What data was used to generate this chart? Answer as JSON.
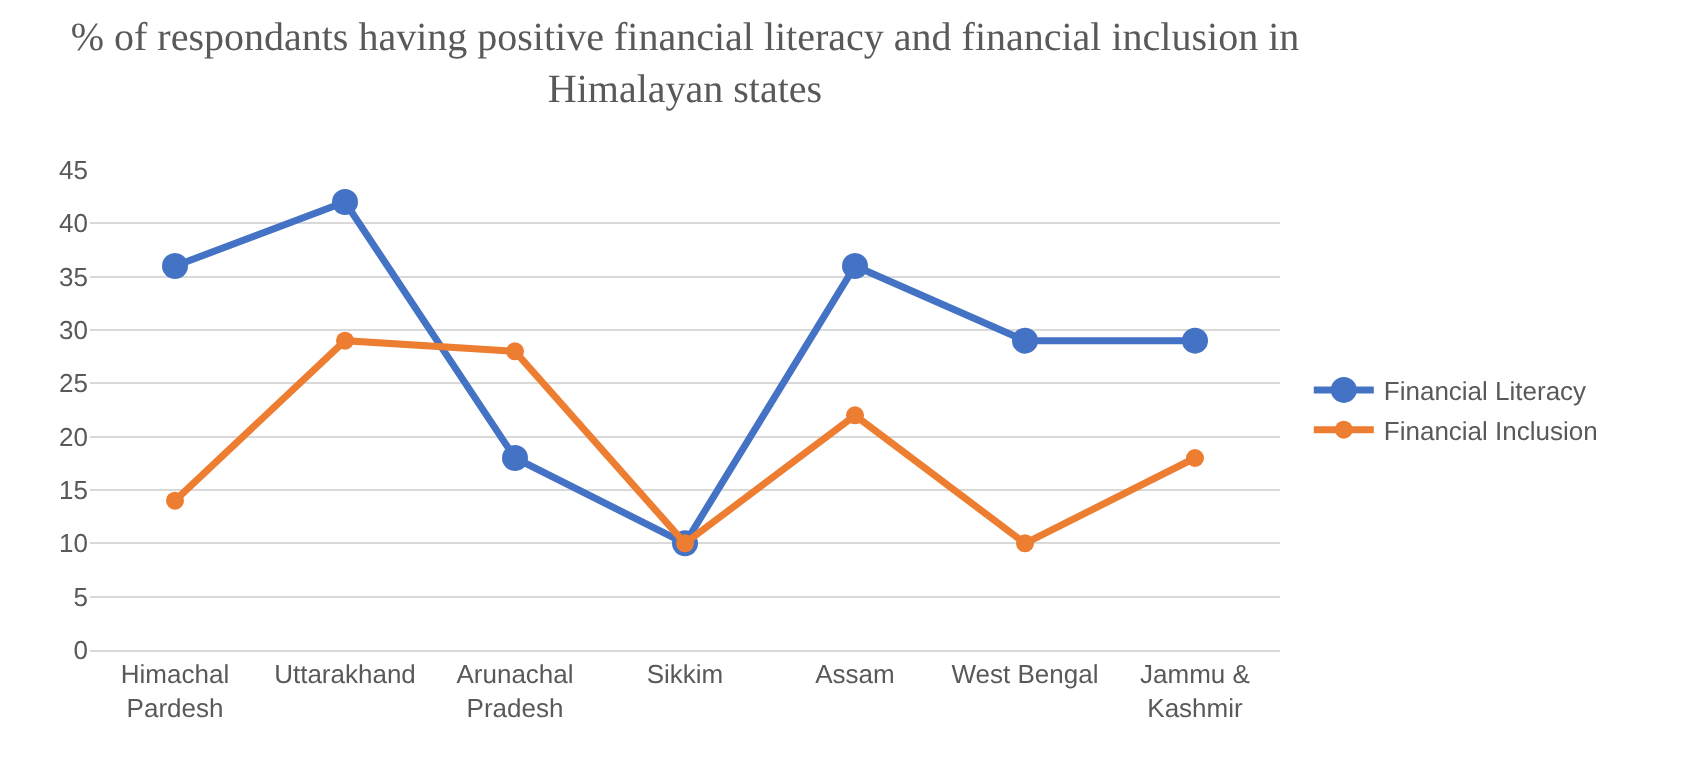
{
  "chart_data": {
    "type": "line",
    "title": "% of respondants having positive financial literacy and financial inclusion in\nHimalayan states",
    "categories": [
      "Himachal\nPardesh",
      "Uttarakhand",
      "Arunachal\nPradesh",
      "Sikkim",
      "Assam",
      "West Bengal",
      "Jammu &\nKashmir"
    ],
    "series": [
      {
        "name": "Financial Literacy",
        "color": "#4472c4",
        "values": [
          36,
          42,
          18,
          10,
          36,
          29,
          29
        ]
      },
      {
        "name": "Financial Inclusion",
        "color": "#ed7d31",
        "values": [
          14,
          29,
          28,
          10,
          22,
          10,
          18
        ]
      }
    ],
    "ylim": [
      0,
      45
    ],
    "yticks": [
      0,
      5,
      10,
      15,
      20,
      25,
      30,
      35,
      40,
      45
    ],
    "grid": "y",
    "legend": "right",
    "marker": "circle",
    "line_style": "solid"
  }
}
